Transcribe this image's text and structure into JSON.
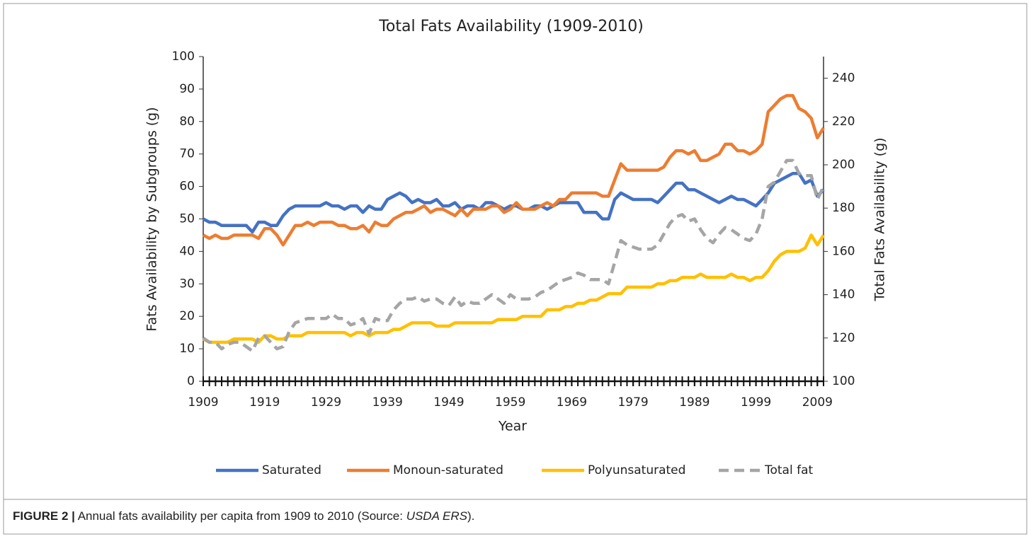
{
  "chart_data": {
    "type": "line",
    "title": "Total Fats Availability (1909-2010)",
    "x_label": "Year",
    "y_label": "Fats Availability by Subgroups (g)",
    "y2_label": "Total Fats Availability (g)",
    "x": [
      1909,
      1910,
      1911,
      1912,
      1913,
      1914,
      1915,
      1916,
      1917,
      1918,
      1919,
      1920,
      1921,
      1922,
      1923,
      1924,
      1925,
      1926,
      1927,
      1928,
      1929,
      1930,
      1931,
      1932,
      1933,
      1934,
      1935,
      1936,
      1937,
      1938,
      1939,
      1940,
      1941,
      1942,
      1943,
      1944,
      1945,
      1946,
      1947,
      1948,
      1949,
      1950,
      1951,
      1952,
      1953,
      1954,
      1955,
      1956,
      1957,
      1958,
      1959,
      1960,
      1961,
      1962,
      1963,
      1964,
      1965,
      1966,
      1967,
      1968,
      1969,
      1970,
      1971,
      1972,
      1973,
      1974,
      1975,
      1976,
      1977,
      1978,
      1979,
      1980,
      1981,
      1982,
      1983,
      1984,
      1985,
      1986,
      1987,
      1988,
      1989,
      1990,
      1991,
      1992,
      1993,
      1994,
      1995,
      1996,
      1997,
      1998,
      1999,
      2000,
      2001,
      2002,
      2003,
      2004,
      2005,
      2006,
      2007,
      2008,
      2009,
      2010
    ],
    "xlim": [
      1909,
      2010
    ],
    "xticks": [
      1909,
      1919,
      1929,
      1939,
      1949,
      1959,
      1969,
      1979,
      1989,
      1999,
      2009
    ],
    "ylim": [
      0,
      100
    ],
    "yticks": [
      0,
      10,
      20,
      30,
      40,
      50,
      60,
      70,
      80,
      90,
      100
    ],
    "y2lim": [
      100,
      250
    ],
    "y2ticks": [
      100,
      120,
      140,
      160,
      180,
      200,
      220,
      240
    ],
    "legend": "bottom",
    "series": [
      {
        "name": "Saturated",
        "color": "#4472c4",
        "dashed": false,
        "values": [
          50,
          49,
          49,
          48,
          48,
          48,
          48,
          48,
          46,
          49,
          49,
          48,
          48,
          51,
          53,
          54,
          54,
          54,
          54,
          54,
          55,
          54,
          54,
          53,
          54,
          54,
          52,
          54,
          53,
          53,
          56,
          57,
          58,
          57,
          55,
          56,
          55,
          55,
          56,
          54,
          54,
          55,
          53,
          54,
          54,
          53,
          55,
          55,
          54,
          53,
          54,
          54,
          53,
          53,
          54,
          54,
          53,
          54,
          55,
          55,
          55,
          55,
          52,
          52,
          52,
          50,
          50,
          56,
          58,
          57,
          56,
          56,
          56,
          56,
          55,
          57,
          59,
          61,
          61,
          59,
          59,
          58,
          57,
          56,
          55,
          56,
          57,
          56,
          56,
          55,
          54,
          56,
          58,
          61,
          62,
          63,
          64,
          64,
          61,
          62,
          57,
          59
        ]
      },
      {
        "name": "Monoun-saturated",
        "color": "#ed7d31",
        "dashed": false,
        "values": [
          45,
          44,
          45,
          44,
          44,
          45,
          45,
          45,
          45,
          44,
          47,
          47,
          45,
          42,
          45,
          48,
          48,
          49,
          48,
          49,
          49,
          49,
          48,
          48,
          47,
          47,
          48,
          46,
          49,
          48,
          48,
          50,
          51,
          52,
          52,
          53,
          54,
          52,
          53,
          53,
          52,
          51,
          53,
          51,
          53,
          53,
          53,
          54,
          54,
          52,
          53,
          55,
          53,
          53,
          53,
          54,
          55,
          54,
          56,
          56,
          58,
          58,
          58,
          58,
          58,
          57,
          57,
          62,
          67,
          65,
          65,
          65,
          65,
          65,
          65,
          66,
          69,
          71,
          71,
          70,
          71,
          68,
          68,
          69,
          70,
          73,
          73,
          71,
          71,
          70,
          71,
          73,
          83,
          85,
          87,
          88,
          88,
          84,
          83,
          81,
          75,
          78
        ]
      },
      {
        "name": "Polyunsaturated",
        "color": "#ffc000",
        "dashed": false,
        "values": [
          13,
          12,
          12,
          12,
          12,
          13,
          13,
          13,
          13,
          12,
          14,
          14,
          13,
          13,
          14,
          14,
          14,
          15,
          15,
          15,
          15,
          15,
          15,
          15,
          14,
          15,
          15,
          14,
          15,
          15,
          15,
          16,
          16,
          17,
          18,
          18,
          18,
          18,
          17,
          17,
          17,
          18,
          18,
          18,
          18,
          18,
          18,
          18,
          19,
          19,
          19,
          19,
          20,
          20,
          20,
          20,
          22,
          22,
          22,
          23,
          23,
          24,
          24,
          25,
          25,
          26,
          27,
          27,
          27,
          29,
          29,
          29,
          29,
          29,
          30,
          30,
          31,
          31,
          32,
          32,
          32,
          33,
          32,
          32,
          32,
          32,
          33,
          32,
          32,
          31,
          32,
          32,
          34,
          37,
          39,
          40,
          40,
          40,
          41,
          45,
          42,
          45
        ]
      },
      {
        "name": "Total fat",
        "color": "#a5a5a5",
        "dashed": true,
        "axis": "y2",
        "values": [
          120,
          118,
          118,
          115,
          117,
          118,
          118,
          116,
          114,
          120,
          121,
          118,
          115,
          116,
          123,
          127,
          128,
          129,
          129,
          129,
          129,
          131,
          129,
          129,
          126,
          127,
          129,
          122,
          129,
          128,
          128,
          133,
          136,
          138,
          138,
          139,
          137,
          138,
          138,
          136,
          135,
          139,
          135,
          137,
          136,
          136,
          138,
          140,
          138,
          136,
          140,
          138,
          138,
          138,
          139,
          141,
          142,
          144,
          146,
          147,
          148,
          150,
          149,
          147,
          147,
          147,
          145,
          155,
          165,
          163,
          162,
          161,
          161,
          161,
          163,
          168,
          173,
          176,
          177,
          174,
          175,
          170,
          166,
          164,
          168,
          171,
          170,
          168,
          166,
          165,
          168,
          175,
          190,
          192,
          197,
          202,
          202,
          196,
          195,
          195,
          184,
          190
        ]
      }
    ]
  },
  "caption": {
    "label": "FIGURE 2 |",
    "text": "Annual fats availability per capita from 1909 to 2010 (Source: ",
    "source": "USDA ERS",
    "end": ")."
  }
}
